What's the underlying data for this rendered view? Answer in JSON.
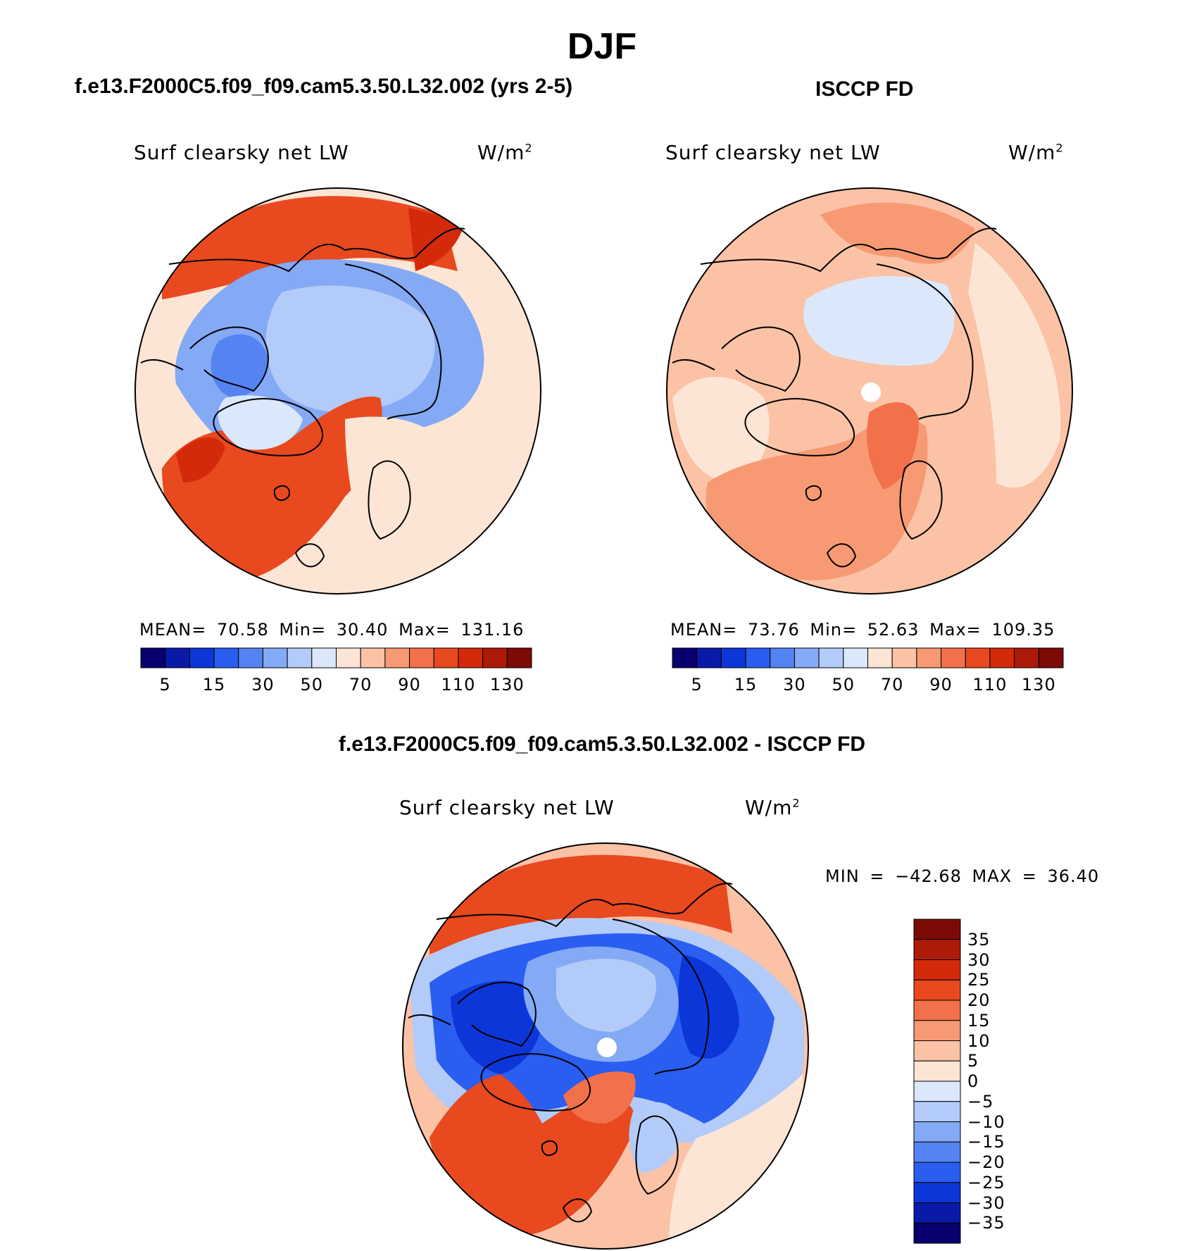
{
  "season_title": "DJF",
  "panels": [
    {
      "id": "model",
      "title": "f.e13.F2000C5.f09_f09.cam5.3.50.L32.002 (yrs 2-5)",
      "variable": "Surf clearsky net LW",
      "units_base": "W/m",
      "units_exp": "2",
      "stats": {
        "mean_label": "MEAN=",
        "mean": "70.58",
        "min_label": "Min=",
        "min": "30.40",
        "max_label": "Max=",
        "max": "131.16"
      },
      "field": {
        "background_bin": 8,
        "inner_cool_bin": 5,
        "has_pole_hole": false
      }
    },
    {
      "id": "obs",
      "title": "ISCCP FD",
      "variable": "Surf clearsky net LW",
      "units_base": "W/m",
      "units_exp": "2",
      "stats": {
        "mean_label": "MEAN=",
        "mean": "73.76",
        "min_label": "Min=",
        "min": "52.63",
        "max_label": "Max=",
        "max": "109.35"
      },
      "field": {
        "background_bin": 8,
        "inner_cool_bin": 7,
        "has_pole_hole": true
      }
    },
    {
      "id": "diff",
      "title": "f.e13.F2000C5.f09_f09.cam5.3.50.L32.002 - ISCCP FD",
      "variable": "Surf clearsky net LW",
      "units_base": "W/m",
      "units_exp": "2",
      "stats_text": "MIN = −42.68 MAX =  36.40",
      "field": {
        "has_pole_hole": true
      }
    }
  ],
  "colorbar_main": {
    "tick_labels": [
      "5",
      "15",
      "30",
      "50",
      "70",
      "90",
      "110",
      "130"
    ],
    "colors": [
      "#08006e",
      "#0a1aa8",
      "#0d36d8",
      "#2a5ef0",
      "#5584f2",
      "#84a9f5",
      "#b3cbf8",
      "#dbe8fb",
      "#fde5d5",
      "#fbc2a6",
      "#f79a74",
      "#f2714a",
      "#e8491f",
      "#d32a0b",
      "#ad1a07",
      "#7d0a04"
    ]
  },
  "colorbar_diff": {
    "tick_labels": [
      "35",
      "30",
      "25",
      "20",
      "15",
      "10",
      "5",
      "0",
      "−5",
      "−10",
      "−15",
      "−20",
      "−25",
      "−30",
      "−35"
    ],
    "colors": [
      "#7d0a04",
      "#ad1a07",
      "#d32a0b",
      "#e8491f",
      "#f2714a",
      "#f79a74",
      "#fbc2a6",
      "#fde5d5",
      "#dbe8fb",
      "#b3cbf8",
      "#84a9f5",
      "#5584f2",
      "#2a5ef0",
      "#0d36d8",
      "#0a1aa8",
      "#08006e"
    ]
  }
}
